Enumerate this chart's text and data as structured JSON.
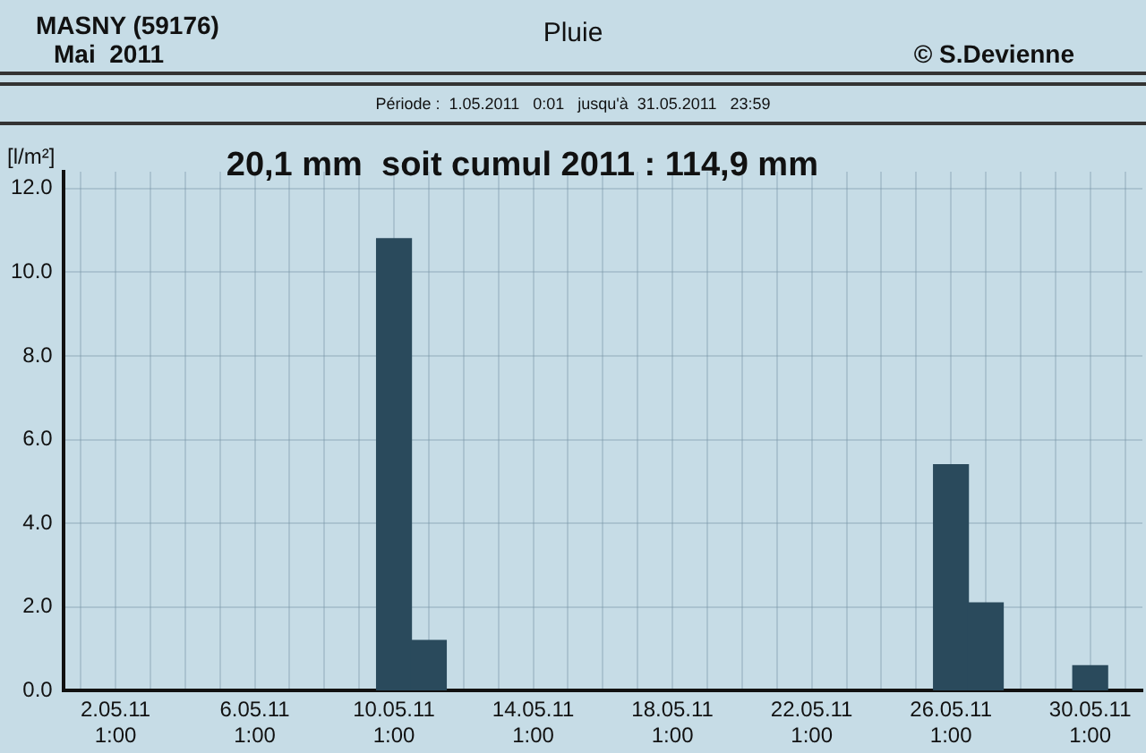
{
  "chart_data": {
    "type": "bar",
    "title": "Pluie",
    "subtitle": "Période :  1.05.2011   0:01   jusqu'à  31.05.2011   23:59",
    "ylabel": "[l/m²]",
    "annotations": [
      "MASNY (59176)",
      "Mai  2011",
      "© S.Devienne",
      "20,1 mm  soit cumul 2011 : 114,9 mm"
    ],
    "categories": [
      null,
      "2.05.11 1:00",
      null,
      null,
      null,
      "6.05.11 1:00",
      null,
      null,
      null,
      "10.05.11 1:00",
      null,
      null,
      null,
      "14.05.11 1:00",
      null,
      null,
      null,
      "18.05.11 1:00",
      null,
      null,
      null,
      "22.05.11 1:00",
      null,
      null,
      null,
      "26.05.11 1:00",
      null,
      null,
      null,
      "30.05.11 1:00",
      null
    ],
    "values": [
      null,
      null,
      null,
      null,
      null,
      null,
      null,
      null,
      null,
      10.8,
      1.2,
      null,
      null,
      null,
      null,
      null,
      null,
      null,
      null,
      null,
      null,
      null,
      null,
      null,
      null,
      5.4,
      2.1,
      null,
      null,
      0.6,
      null
    ],
    "color": "#2a4a5c",
    "ylim": [
      0,
      12.4
    ],
    "yticks": [
      {
        "value": 0,
        "label": "0.0"
      },
      {
        "value": 2,
        "label": "2.0"
      },
      {
        "value": 4,
        "label": "4.0"
      },
      {
        "value": 6,
        "label": "6.0"
      },
      {
        "value": 8,
        "label": "8.0"
      },
      {
        "value": 10,
        "label": "10.0"
      },
      {
        "value": 12,
        "label": "12.0"
      }
    ],
    "grid": true
  }
}
